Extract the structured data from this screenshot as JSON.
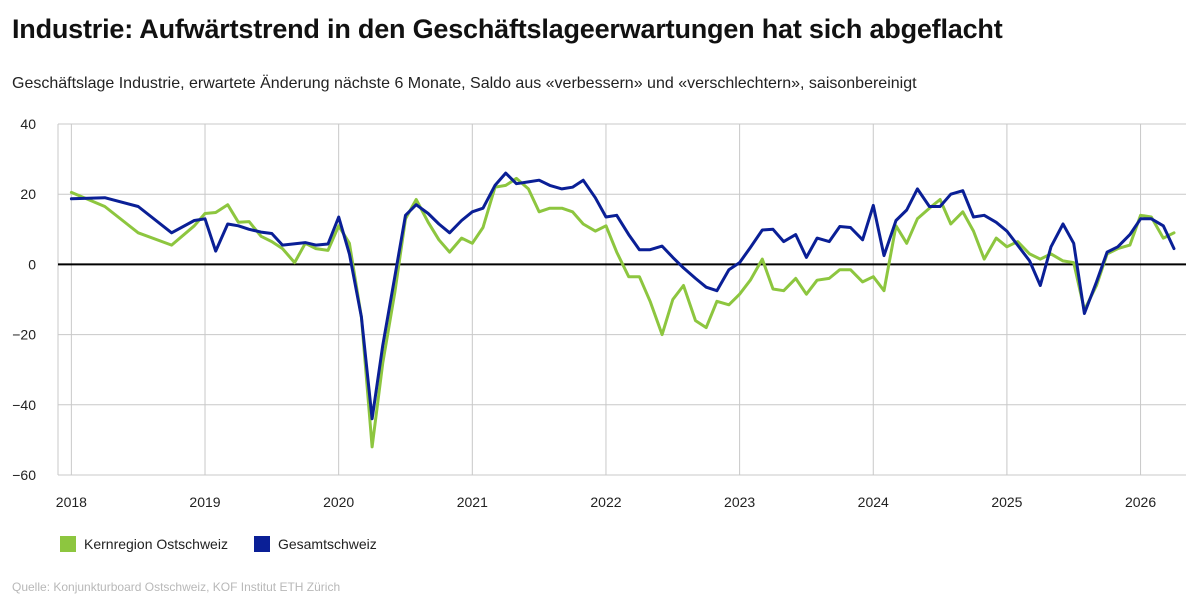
{
  "title": "Industrie: Aufwärtstrend in den Geschäftslageerwartungen hat sich abgeflacht",
  "subtitle": "Geschäftslage Industrie, erwartete Änderung nächste 6 Monate, Saldo aus «verbessern» und «verschlechtern», saisonbereinigt",
  "source": "Quelle: Konjunkturboard Ostschweiz, KOF Institut ETH Zürich",
  "colors": {
    "kernregion": "#8dc63f",
    "gesamtschweiz": "#0a1f96",
    "grid": "#c8c8c8",
    "zero": "#000000"
  },
  "chart_data": {
    "type": "line",
    "title": "Industrie: Aufwärtstrend in den Geschäftslageerwartungen hat sich abgeflacht",
    "xlabel": "",
    "ylabel": "",
    "ylim": [
      -60,
      40
    ],
    "yticks": [
      40,
      20,
      0,
      -20,
      -40,
      -60
    ],
    "ytick_labels": [
      "40",
      "20",
      "0",
      "−20",
      "−40",
      "−60"
    ],
    "xlim": [
      2018,
      2026.3
    ],
    "xticks": [
      2018,
      2019,
      2020,
      2021,
      2022,
      2023,
      2024,
      2025,
      2026
    ],
    "xtick_labels": [
      "2018",
      "2019",
      "2020",
      "2021",
      "2022",
      "2023",
      "2024",
      "2025",
      "2026"
    ],
    "grid": true,
    "legend_position": "bottom-left",
    "series": [
      {
        "name": "Kernregion Ostschweiz",
        "points": [
          [
            2018.0,
            20.5
          ],
          [
            2018.25,
            16.5
          ],
          [
            2018.5,
            9.0
          ],
          [
            2018.75,
            5.5
          ],
          [
            2018.92,
            11.0
          ],
          [
            2019.0,
            14.5
          ],
          [
            2019.08,
            14.8
          ],
          [
            2019.17,
            17.0
          ],
          [
            2019.25,
            12.0
          ],
          [
            2019.33,
            12.2
          ],
          [
            2019.42,
            8.0
          ],
          [
            2019.5,
            6.5
          ],
          [
            2019.58,
            4.5
          ],
          [
            2019.67,
            0.5
          ],
          [
            2019.75,
            6.0
          ],
          [
            2019.83,
            4.5
          ],
          [
            2019.92,
            4.0
          ],
          [
            2020.0,
            11.0
          ],
          [
            2020.08,
            6.0
          ],
          [
            2020.17,
            -15.0
          ],
          [
            2020.25,
            -52.0
          ],
          [
            2020.33,
            -28.0
          ],
          [
            2020.42,
            -8.0
          ],
          [
            2020.5,
            13.0
          ],
          [
            2020.58,
            18.5
          ],
          [
            2020.67,
            12.0
          ],
          [
            2020.75,
            7.0
          ],
          [
            2020.83,
            3.5
          ],
          [
            2020.92,
            7.5
          ],
          [
            2021.0,
            6.0
          ],
          [
            2021.08,
            10.5
          ],
          [
            2021.17,
            22.0
          ],
          [
            2021.25,
            22.5
          ],
          [
            2021.33,
            24.5
          ],
          [
            2021.42,
            21.5
          ],
          [
            2021.5,
            15.0
          ],
          [
            2021.58,
            16.0
          ],
          [
            2021.67,
            16.0
          ],
          [
            2021.75,
            15.0
          ],
          [
            2021.83,
            11.5
          ],
          [
            2021.92,
            9.5
          ],
          [
            2022.0,
            11.0
          ],
          [
            2022.08,
            3.5
          ],
          [
            2022.17,
            -3.5
          ],
          [
            2022.25,
            -3.5
          ],
          [
            2022.33,
            -10.5
          ],
          [
            2022.42,
            -20.0
          ],
          [
            2022.5,
            -10.0
          ],
          [
            2022.58,
            -6.0
          ],
          [
            2022.67,
            -16.0
          ],
          [
            2022.75,
            -18.0
          ],
          [
            2022.83,
            -10.5
          ],
          [
            2022.92,
            -11.5
          ],
          [
            2023.0,
            -8.5
          ],
          [
            2023.08,
            -4.5
          ],
          [
            2023.17,
            1.5
          ],
          [
            2023.25,
            -7.0
          ],
          [
            2023.33,
            -7.5
          ],
          [
            2023.42,
            -4.0
          ],
          [
            2023.5,
            -8.5
          ],
          [
            2023.58,
            -4.5
          ],
          [
            2023.67,
            -4.0
          ],
          [
            2023.75,
            -1.5
          ],
          [
            2023.83,
            -1.5
          ],
          [
            2023.92,
            -5.0
          ],
          [
            2024.0,
            -3.5
          ],
          [
            2024.08,
            -7.5
          ],
          [
            2024.17,
            11.0
          ],
          [
            2024.25,
            6.0
          ],
          [
            2024.33,
            13.0
          ],
          [
            2024.42,
            16.0
          ],
          [
            2024.5,
            18.5
          ],
          [
            2024.58,
            11.5
          ],
          [
            2024.67,
            15.0
          ],
          [
            2024.75,
            9.5
          ],
          [
            2024.83,
            1.5
          ],
          [
            2024.92,
            7.5
          ],
          [
            2025.0,
            5.0
          ],
          [
            2025.08,
            6.5
          ],
          [
            2025.17,
            3.0
          ],
          [
            2025.25,
            1.5
          ],
          [
            2025.33,
            3.0
          ],
          [
            2025.42,
            1.0
          ],
          [
            2025.5,
            0.5
          ],
          [
            2025.58,
            -13.0
          ],
          [
            2025.67,
            -6.0
          ],
          [
            2025.75,
            3.0
          ],
          [
            2025.83,
            4.5
          ],
          [
            2025.92,
            5.5
          ],
          [
            2026.0,
            14.0
          ],
          [
            2026.08,
            13.5
          ],
          [
            2026.17,
            7.5
          ],
          [
            2026.25,
            9.0
          ]
        ]
      },
      {
        "name": "Gesamtschweiz",
        "points": [
          [
            2018.0,
            18.7
          ],
          [
            2018.25,
            19.0
          ],
          [
            2018.5,
            16.5
          ],
          [
            2018.75,
            9.0
          ],
          [
            2018.92,
            12.5
          ],
          [
            2019.0,
            13.0
          ],
          [
            2019.08,
            3.8
          ],
          [
            2019.17,
            11.5
          ],
          [
            2019.25,
            11.0
          ],
          [
            2019.33,
            10.0
          ],
          [
            2019.42,
            9.2
          ],
          [
            2019.5,
            8.8
          ],
          [
            2019.58,
            5.5
          ],
          [
            2019.75,
            6.2
          ],
          [
            2019.83,
            5.5
          ],
          [
            2019.92,
            5.8
          ],
          [
            2020.0,
            13.5
          ],
          [
            2020.08,
            3.0
          ],
          [
            2020.17,
            -15.0
          ],
          [
            2020.25,
            -44.0
          ],
          [
            2020.33,
            -23.0
          ],
          [
            2020.42,
            -3.5
          ],
          [
            2020.5,
            14.0
          ],
          [
            2020.58,
            17.0
          ],
          [
            2020.67,
            14.5
          ],
          [
            2020.75,
            11.5
          ],
          [
            2020.83,
            9.0
          ],
          [
            2020.92,
            12.5
          ],
          [
            2021.0,
            15.0
          ],
          [
            2021.08,
            16.0
          ],
          [
            2021.17,
            22.5
          ],
          [
            2021.25,
            26.0
          ],
          [
            2021.33,
            23.0
          ],
          [
            2021.42,
            23.5
          ],
          [
            2021.5,
            24.0
          ],
          [
            2021.58,
            22.5
          ],
          [
            2021.67,
            21.5
          ],
          [
            2021.75,
            22.0
          ],
          [
            2021.83,
            24.0
          ],
          [
            2021.92,
            19.0
          ],
          [
            2022.0,
            13.5
          ],
          [
            2022.08,
            14.0
          ],
          [
            2022.17,
            8.5
          ],
          [
            2022.25,
            4.2
          ],
          [
            2022.33,
            4.2
          ],
          [
            2022.42,
            5.2
          ],
          [
            2022.5,
            2.0
          ],
          [
            2022.58,
            -1.0
          ],
          [
            2022.67,
            -4.0
          ],
          [
            2022.75,
            -6.5
          ],
          [
            2022.83,
            -7.5
          ],
          [
            2022.92,
            -1.5
          ],
          [
            2023.0,
            0.5
          ],
          [
            2023.08,
            4.8
          ],
          [
            2023.17,
            9.8
          ],
          [
            2023.25,
            10.0
          ],
          [
            2023.33,
            6.5
          ],
          [
            2023.42,
            8.5
          ],
          [
            2023.5,
            2.0
          ],
          [
            2023.58,
            7.5
          ],
          [
            2023.67,
            6.5
          ],
          [
            2023.75,
            10.8
          ],
          [
            2023.83,
            10.5
          ],
          [
            2023.92,
            7.0
          ],
          [
            2024.0,
            16.8
          ],
          [
            2024.08,
            2.5
          ],
          [
            2024.17,
            12.5
          ],
          [
            2024.25,
            15.5
          ],
          [
            2024.33,
            21.5
          ],
          [
            2024.42,
            16.5
          ],
          [
            2024.5,
            16.5
          ],
          [
            2024.58,
            20.0
          ],
          [
            2024.67,
            21.0
          ],
          [
            2024.75,
            13.5
          ],
          [
            2024.83,
            14.0
          ],
          [
            2024.92,
            12.0
          ],
          [
            2025.0,
            9.5
          ],
          [
            2025.08,
            5.5
          ],
          [
            2025.17,
            1.0
          ],
          [
            2025.25,
            -6.0
          ],
          [
            2025.33,
            5.0
          ],
          [
            2025.42,
            11.5
          ],
          [
            2025.5,
            6.0
          ],
          [
            2025.58,
            -14.0
          ],
          [
            2025.67,
            -5.0
          ],
          [
            2025.75,
            3.5
          ],
          [
            2025.83,
            5.0
          ],
          [
            2025.92,
            8.5
          ],
          [
            2026.0,
            13.0
          ],
          [
            2026.08,
            13.0
          ],
          [
            2026.17,
            11.0
          ],
          [
            2026.25,
            4.5
          ]
        ]
      }
    ]
  }
}
